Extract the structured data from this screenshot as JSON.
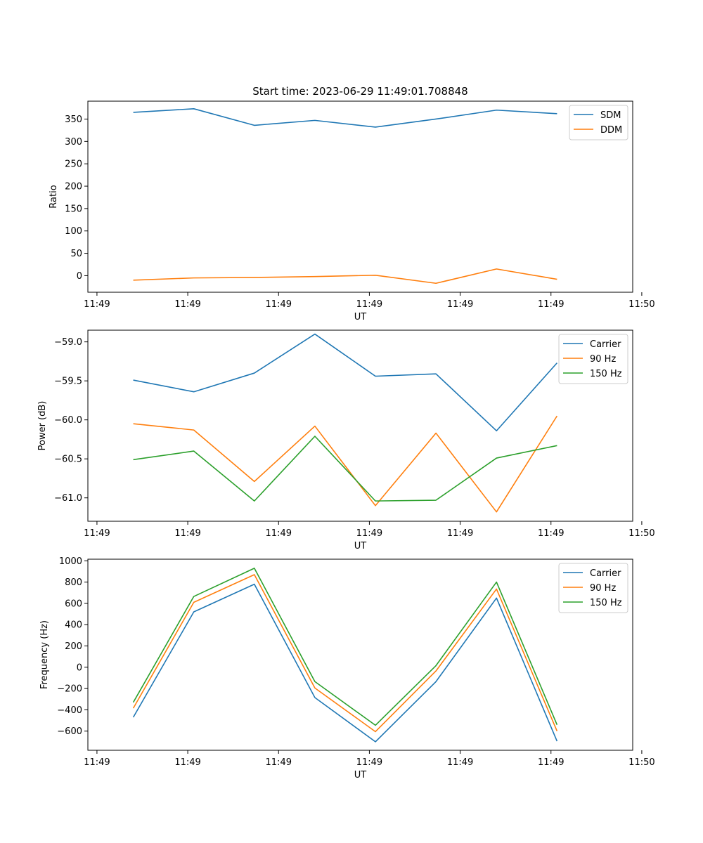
{
  "figure": {
    "title": "Start time: 2023-06-29 11:49:01.708848"
  },
  "colors": {
    "blue": "#1f77b4",
    "orange": "#ff7f0e",
    "green": "#2ca02c"
  },
  "chart_data": [
    {
      "type": "line",
      "xlabel": "UT",
      "ylabel": "Ratio",
      "x": [
        "11:49:02.5",
        "11:49:03.0",
        "11:49:03.5",
        "11:49:04.0",
        "11:49:04.5",
        "11:49:05.0",
        "11:49:05.5",
        "11:49:06.0"
      ],
      "xlim": [
        "11:49:02.125",
        "11:49:06.625"
      ],
      "xticks": [
        "11:49:02.2",
        "11:49:02.95",
        "11:49:03.7",
        "11:49:04.45",
        "11:49:05.2",
        "11:49:05.95",
        "11:49:06.7"
      ],
      "xtick_labels": [
        "11:49",
        "11:49",
        "11:49",
        "11:49",
        "11:49",
        "11:49",
        "11:50"
      ],
      "ylim": [
        -37,
        390
      ],
      "yticks": [
        0,
        50,
        100,
        150,
        200,
        250,
        300,
        350
      ],
      "legend_position": "top-right",
      "series": [
        {
          "name": "SDM",
          "color": "#1f77b4",
          "values": [
            365,
            373,
            336,
            347,
            332,
            350,
            370,
            362
          ]
        },
        {
          "name": "DDM",
          "color": "#ff7f0e",
          "values": [
            -10,
            -5,
            -4,
            -2,
            1,
            -17,
            15,
            -8
          ]
        }
      ]
    },
    {
      "type": "line",
      "xlabel": "UT",
      "ylabel": "Power (dB)",
      "x": [
        "11:49:02.5",
        "11:49:03.0",
        "11:49:03.5",
        "11:49:04.0",
        "11:49:04.5",
        "11:49:05.0",
        "11:49:05.5",
        "11:49:06.0"
      ],
      "xlim": [
        "11:49:02.125",
        "11:49:06.625"
      ],
      "xticks": [
        "11:49:02.2",
        "11:49:02.95",
        "11:49:03.7",
        "11:49:04.45",
        "11:49:05.2",
        "11:49:05.95",
        "11:49:06.7"
      ],
      "xtick_labels": [
        "11:49",
        "11:49",
        "11:49",
        "11:49",
        "11:49",
        "11:49",
        "11:50"
      ],
      "ylim": [
        -61.3,
        -58.85
      ],
      "yticks": [
        -61.0,
        -60.5,
        -60.0,
        -59.5,
        -59.0
      ],
      "ytick_labels": [
        "−61.0",
        "−60.5",
        "−60.0",
        "−59.5",
        "−59.0"
      ],
      "legend_position": "top-right",
      "series": [
        {
          "name": "Carrier",
          "color": "#1f77b4",
          "values": [
            -59.49,
            -59.64,
            -59.4,
            -58.9,
            -59.44,
            -59.41,
            -60.14,
            -59.27
          ]
        },
        {
          "name": "90 Hz",
          "color": "#ff7f0e",
          "values": [
            -60.05,
            -60.13,
            -60.79,
            -60.08,
            -61.1,
            -60.17,
            -61.18,
            -59.95
          ]
        },
        {
          "name": "150 Hz",
          "color": "#2ca02c",
          "values": [
            -60.51,
            -60.4,
            -61.04,
            -60.21,
            -61.04,
            -61.03,
            -60.49,
            -60.33
          ]
        }
      ]
    },
    {
      "type": "line",
      "xlabel": "UT",
      "ylabel": "Frequency (Hz)",
      "x": [
        "11:49:02.5",
        "11:49:03.0",
        "11:49:03.5",
        "11:49:04.0",
        "11:49:04.5",
        "11:49:05.0",
        "11:49:05.5",
        "11:49:06.0"
      ],
      "xlim": [
        "11:49:02.125",
        "11:49:06.625"
      ],
      "xticks": [
        "11:49:02.2",
        "11:49:02.95",
        "11:49:03.7",
        "11:49:04.45",
        "11:49:05.2",
        "11:49:05.95",
        "11:49:06.7"
      ],
      "xtick_labels": [
        "11:49",
        "11:49",
        "11:49",
        "11:49",
        "11:49",
        "11:49",
        "11:50"
      ],
      "ylim": [
        -780,
        1015
      ],
      "yticks": [
        -600,
        -400,
        -200,
        0,
        200,
        400,
        600,
        800,
        1000
      ],
      "ytick_labels": [
        "−600",
        "−400",
        "−200",
        "0",
        "200",
        "400",
        "600",
        "800",
        "1000"
      ],
      "legend_position": "top-right",
      "series": [
        {
          "name": "Carrier",
          "color": "#1f77b4",
          "values": [
            -470,
            520,
            780,
            -285,
            -700,
            -135,
            650,
            -695
          ]
        },
        {
          "name": "90 Hz",
          "color": "#ff7f0e",
          "values": [
            -385,
            610,
            870,
            -195,
            -605,
            -35,
            735,
            -600
          ]
        },
        {
          "name": "150 Hz",
          "color": "#2ca02c",
          "values": [
            -330,
            665,
            930,
            -135,
            -545,
            15,
            800,
            -540
          ]
        }
      ]
    }
  ]
}
